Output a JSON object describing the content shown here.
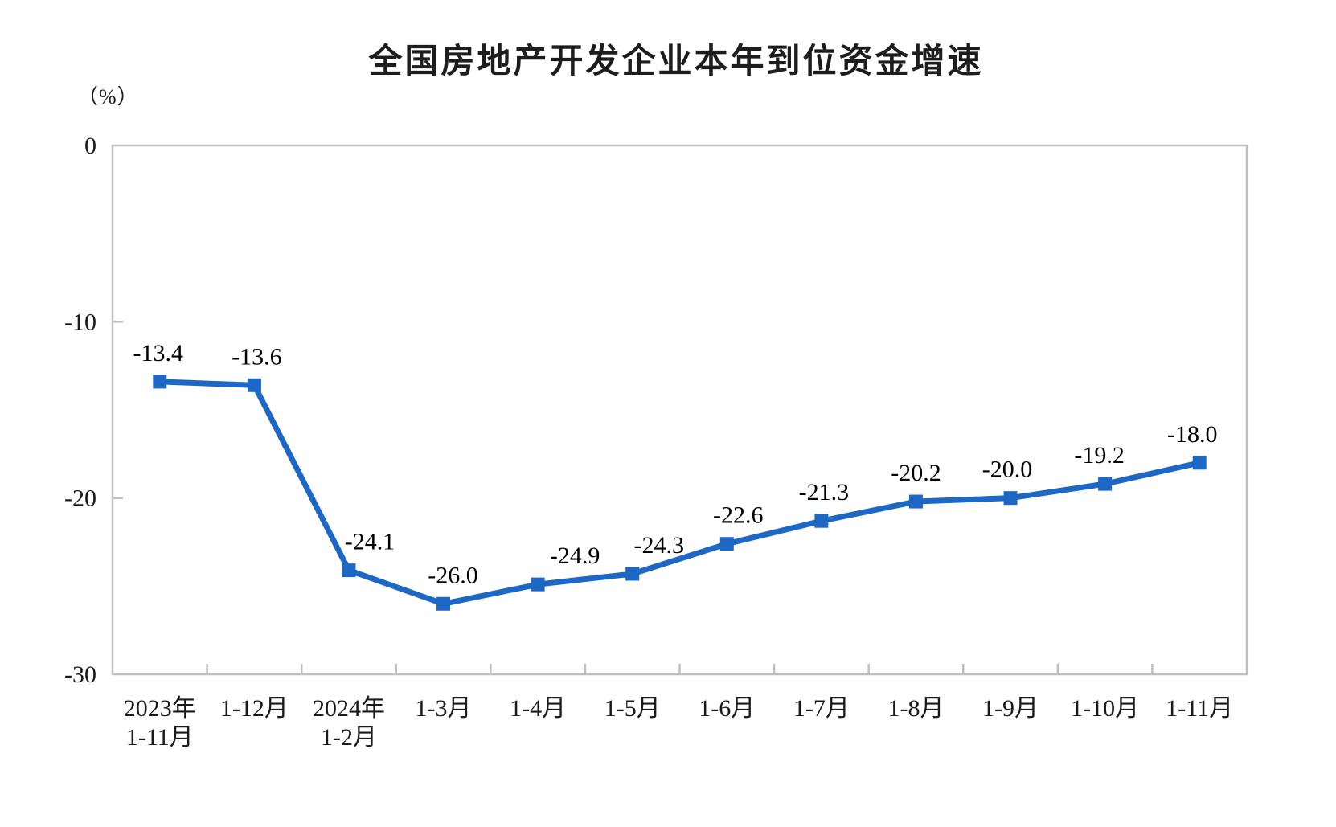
{
  "page": {
    "background": "#FFFFFF"
  },
  "chart_data": {
    "type": "line",
    "title": "全国房地产开发企业本年到位资金增速",
    "unit_label": "（%）",
    "categories": [
      [
        "2023年",
        "1-11月"
      ],
      [
        "1-12月"
      ],
      [
        "2024年",
        "1-2月"
      ],
      [
        "1-3月"
      ],
      [
        "1-4月"
      ],
      [
        "1-5月"
      ],
      [
        "1-6月"
      ],
      [
        "1-7月"
      ],
      [
        "1-8月"
      ],
      [
        "1-9月"
      ],
      [
        "1-10月"
      ],
      [
        "1-11月"
      ]
    ],
    "values": [
      -13.4,
      -13.6,
      -24.1,
      -26.0,
      -24.9,
      -24.3,
      -22.6,
      -21.3,
      -20.2,
      -20.0,
      -19.2,
      -18.0
    ],
    "point_labels": [
      "-13.4",
      "-13.6",
      "-24.1",
      "-26.0",
      "-24.9",
      "-24.3",
      "-22.6",
      "-21.3",
      "-20.2",
      "-20.0",
      "-19.2",
      "-18.0"
    ],
    "xlabel": "",
    "ylabel": "（%）",
    "ylim": [
      -30,
      0
    ],
    "y_ticks": [
      0,
      -10,
      -20,
      -30
    ],
    "y_tick_labels": [
      "0",
      "-10",
      "-20",
      "-30"
    ],
    "grid": false,
    "legend": "none",
    "marker": "square",
    "colors": {
      "line": "#1D68C5",
      "marker": "#1D68C5",
      "axis": "#BFBFBF",
      "axis_text": "#1A1A1A",
      "label_text": "#000000",
      "title_text": "#1D1D1D"
    }
  }
}
